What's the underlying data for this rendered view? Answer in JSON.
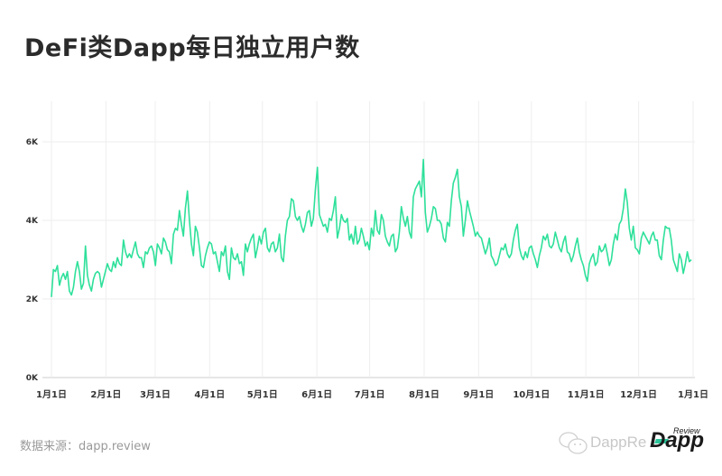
{
  "title": "DeFi类Dapp每日独立用户数",
  "source": "数据来源：dapp.review",
  "watermark": {
    "text": "DappRe",
    "logo": "Dapp",
    "logo_sup": "Review"
  },
  "colors": {
    "line": "#2ee09a",
    "grid": "#eeeeee",
    "axis": "#cccccc"
  },
  "chart_data": {
    "type": "line",
    "title": "DeFi类Dapp每日独立用户数",
    "xlabel": "",
    "ylabel": "",
    "ylim": [
      0,
      7000
    ],
    "yticks": [
      0,
      2000,
      4000,
      6000
    ],
    "ytick_labels": [
      "0K",
      "2K",
      "4K",
      "6K"
    ],
    "xtick_labels": [
      "1月1日",
      "2月1日",
      "3月1日",
      "4月1日",
      "5月1日",
      "6月1日",
      "7月1日",
      "8月1日",
      "9月1日",
      "10月1日",
      "11月1日",
      "12月1日",
      "1月1日"
    ],
    "grid": true,
    "legend": null,
    "x_step_days": 2,
    "series": [
      {
        "name": "独立用户数",
        "values": [
          2050,
          2750,
          2700,
          2850,
          2350,
          2550,
          2650,
          2500,
          2700,
          2200,
          2100,
          2300,
          2700,
          2950,
          2700,
          2250,
          2400,
          3350,
          2600,
          2350,
          2200,
          2500,
          2650,
          2700,
          2650,
          2300,
          2500,
          2700,
          2900,
          2750,
          2700,
          2950,
          2800,
          3050,
          2900,
          2850,
          3500,
          3200,
          3050,
          3150,
          3050,
          3250,
          3450,
          3150,
          3050,
          3050,
          2800,
          3200,
          3150,
          3300,
          3350,
          3200,
          2850,
          3400,
          3300,
          3150,
          3550,
          3450,
          3250,
          3200,
          2900,
          3650,
          3800,
          3750,
          4250,
          3900,
          3600,
          4300,
          4750,
          4000,
          3400,
          3100,
          3850,
          3700,
          3300,
          2850,
          2800,
          3100,
          3300,
          3450,
          3400,
          3150,
          3200,
          2950,
          2700,
          3200,
          3100,
          3350,
          2700,
          2500,
          3300,
          3050,
          3000,
          3150,
          2900,
          2950,
          2600,
          3400,
          3200,
          3400,
          3550,
          3650,
          3050,
          3300,
          3600,
          3400,
          3700,
          3800,
          3300,
          3200,
          3400,
          3450,
          3200,
          3300,
          3650,
          3050,
          2950,
          3600,
          4000,
          4100,
          4550,
          4500,
          4100,
          4000,
          4100,
          3850,
          3700,
          3900,
          4200,
          4250,
          3850,
          4050,
          4800,
          5350,
          4150,
          4000,
          3850,
          3900,
          3700,
          4050,
          4000,
          4250,
          4600,
          3550,
          3800,
          4150,
          4000,
          3950,
          4050,
          3500,
          3650,
          3400,
          3850,
          3400,
          3500,
          3800,
          3600,
          3350,
          3450,
          3250,
          3800,
          3600,
          4250,
          3750,
          3650,
          4150,
          4000,
          3600,
          3450,
          3350,
          3600,
          3650,
          3200,
          3300,
          3700,
          4350,
          4050,
          3850,
          4100,
          3700,
          3550,
          4600,
          4800,
          4900,
          5000,
          4600,
          5550,
          4200,
          3700,
          3850,
          4050,
          4350,
          4300,
          4000,
          4000,
          3900,
          3550,
          3450,
          3950,
          3850,
          4500,
          4950,
          5100,
          5300,
          4600,
          4350,
          3600,
          4000,
          4500,
          4250,
          4050,
          3850,
          3600,
          3700,
          3600,
          3550,
          3350,
          3150,
          3300,
          3550,
          3100,
          3000,
          2850,
          2900,
          3100,
          3300,
          3250,
          3400,
          3150,
          3050,
          3150,
          3500,
          3750,
          3900,
          3300,
          3100,
          3000,
          3200,
          3050,
          3300,
          3350,
          3150,
          3000,
          2800,
          3100,
          3300,
          3600,
          3500,
          3650,
          3350,
          3300,
          3400,
          3700,
          3500,
          3300,
          3200,
          3450,
          3600,
          3200,
          3150,
          2950,
          3100,
          3350,
          3550,
          3200,
          3000,
          2850,
          2600,
          2450,
          2900,
          3050,
          3150,
          2850,
          2950,
          3350,
          3200,
          3250,
          3400,
          3150,
          2850,
          3000,
          3400,
          3650,
          3500,
          3900,
          4000,
          4300,
          4800,
          4450,
          3800,
          3500,
          3850,
          3300,
          3250,
          3150,
          3550,
          3700,
          3600,
          3500,
          3400,
          3600,
          3700,
          3500,
          3500,
          3100,
          3000,
          3500,
          3850,
          3800,
          3800,
          3500,
          3000,
          2850,
          2700,
          3150,
          3000,
          2650,
          2900,
          3200,
          2950,
          3000
        ]
      }
    ]
  }
}
